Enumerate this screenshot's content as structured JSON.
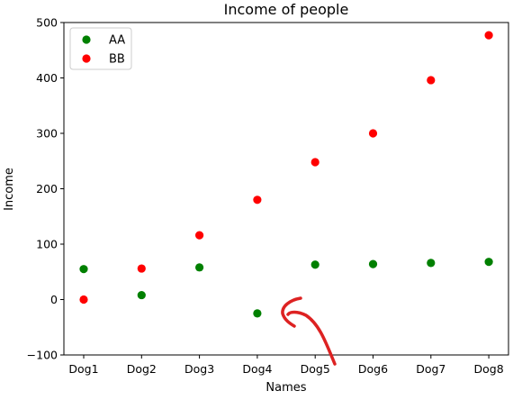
{
  "chart_data": {
    "type": "scatter",
    "title": "Income of people",
    "xlabel": "Names",
    "ylabel": "Income",
    "categories": [
      "Dog1",
      "Dog2",
      "Dog3",
      "Dog4",
      "Dog5",
      "Dog6",
      "Dog7",
      "Dog8"
    ],
    "ylim": [
      -100,
      500
    ],
    "yticks": [
      -100,
      0,
      100,
      200,
      300,
      400,
      500
    ],
    "ytick_labels": [
      "−100",
      "0",
      "100",
      "200",
      "300",
      "400",
      "500"
    ],
    "grid": false,
    "legend_position": "upper left",
    "series": [
      {
        "name": "AA",
        "color": "#008000",
        "values": [
          55,
          8,
          58,
          -25,
          63,
          64,
          66,
          68
        ]
      },
      {
        "name": "BB",
        "color": "#ff0000",
        "values": [
          0,
          56,
          116,
          180,
          248,
          300,
          396,
          477
        ]
      }
    ],
    "annotation": {
      "type": "hand-drawn-arrow",
      "color": "#dd2222"
    }
  }
}
